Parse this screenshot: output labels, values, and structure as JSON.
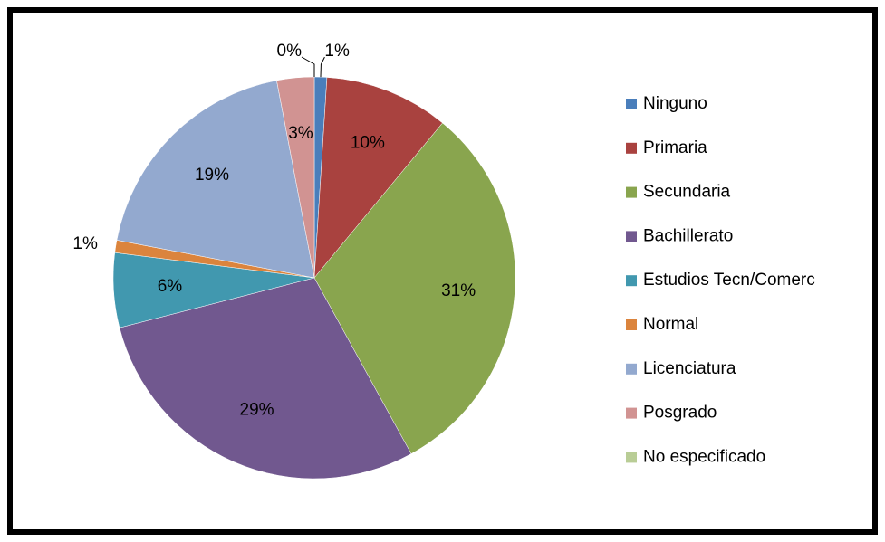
{
  "chart_data": {
    "type": "pie",
    "categories": [
      "Ninguno",
      "Primaria",
      "Secundaria",
      "Bachillerato",
      "Estudios Tecn/Comerc",
      "Normal",
      "Licenciatura",
      "Posgrado",
      "No especificado"
    ],
    "values": [
      1,
      10,
      31,
      29,
      6,
      1,
      19,
      3,
      0
    ],
    "value_labels": [
      "1%",
      "10%",
      "31%",
      "29%",
      "6%",
      "1%",
      "19%",
      "3%",
      "0%"
    ],
    "colors": [
      "#4a7ebb",
      "#a9423f",
      "#89a54e",
      "#71588f",
      "#4198af",
      "#db843d",
      "#93a9cf",
      "#d19392",
      "#b9cd96"
    ]
  }
}
